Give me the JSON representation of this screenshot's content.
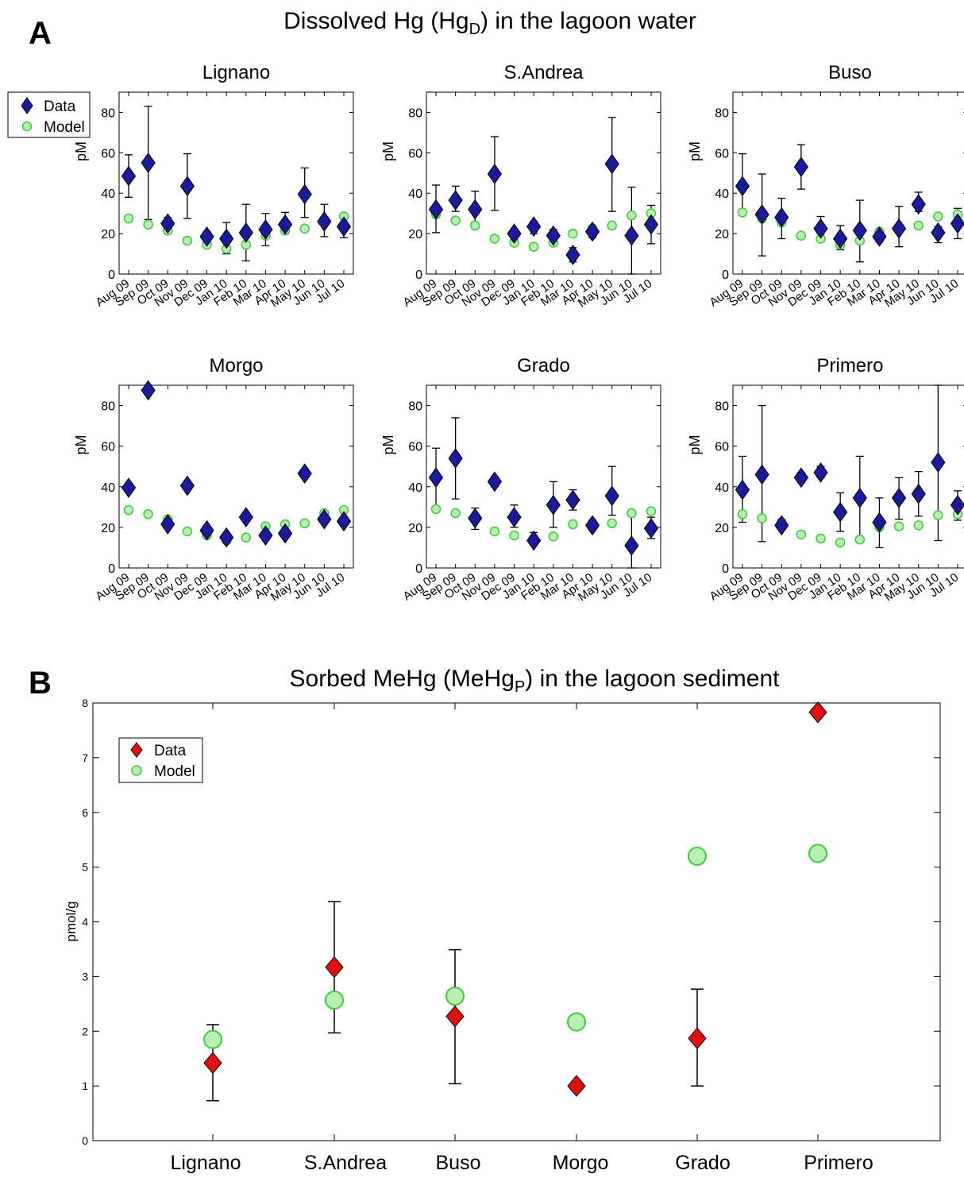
{
  "panel_a": {
    "letter": "A",
    "title_pre": "Dissolved Hg (Hg",
    "title_sub": "D",
    "title_post": ") in the lagoon water"
  },
  "panel_b": {
    "letter": "B",
    "title_pre": "Sorbed MeHg (MeHg",
    "title_sub": "P",
    "title_post": ") in the lagoon sediment"
  },
  "colors": {
    "data_a": "#1a1a9a",
    "data_b": "#e01010",
    "model_fill": "#b8f0b0",
    "model_edge": "#40c840"
  },
  "chart_data": [
    {
      "type": "scatter",
      "title": "Lignano",
      "ylabel": "pM",
      "ylim": [
        0,
        90
      ],
      "yticks": [
        0,
        20,
        40,
        60,
        80
      ],
      "categories": [
        "Aug 09",
        "Sep 09",
        "Oct 09",
        "Nov 09",
        "Dec 09",
        "Jan 10",
        "Feb 10",
        "Mar 10",
        "Apr 10",
        "May 10",
        "Jun 10",
        "Jul 10"
      ],
      "legend": {
        "position": "top-left",
        "entries": [
          "Data",
          "Model"
        ]
      },
      "series": [
        {
          "name": "Data",
          "values": [
            48.5,
            55,
            25,
            43.5,
            18.5,
            17.5,
            20.5,
            22,
            24.5,
            39.5,
            26,
            23.5
          ],
          "err_low": [
            38,
            27,
            22,
            27.5,
            15,
            10,
            6.5,
            14,
            20,
            28,
            18.5,
            18
          ],
          "err_high": [
            59,
            83,
            28,
            59.5,
            21,
            25.5,
            34.5,
            30,
            30.5,
            52.5,
            34.5,
            29
          ]
        },
        {
          "name": "Model",
          "values": [
            27.5,
            24.5,
            21.5,
            16.5,
            14.5,
            12.5,
            14.5,
            19,
            21.5,
            22.5,
            27,
            28.5
          ]
        }
      ]
    },
    {
      "type": "scatter",
      "title": "S.Andrea",
      "ylabel": "pM",
      "ylim": [
        0,
        90
      ],
      "yticks": [
        0,
        20,
        40,
        60,
        80
      ],
      "categories": [
        "Aug 09",
        "Sep 09",
        "Oct 09",
        "Nov 09",
        "Dec 09",
        "Jan 10",
        "Feb 10",
        "Mar 10",
        "Apr 10",
        "May 10",
        "Jun 10",
        "Jul 10"
      ],
      "series": [
        {
          "name": "Data",
          "values": [
            32,
            36.5,
            32,
            49.5,
            20,
            23.5,
            19,
            9.5,
            21,
            54.5,
            19,
            24.5
          ],
          "err_low": [
            20.5,
            31,
            25.5,
            31.5,
            17,
            20,
            16,
            6,
            18,
            31,
            0,
            15
          ],
          "err_high": [
            44,
            43.5,
            41,
            68,
            22,
            26,
            22,
            13,
            24,
            77.5,
            43,
            34
          ]
        },
        {
          "name": "Model",
          "values": [
            29.5,
            26.5,
            24,
            17.5,
            15.5,
            13.5,
            15.5,
            20,
            22.5,
            24,
            29,
            30
          ]
        }
      ]
    },
    {
      "type": "scatter",
      "title": "Buso",
      "ylabel": "pM",
      "ylim": [
        0,
        90
      ],
      "yticks": [
        0,
        20,
        40,
        60,
        80
      ],
      "categories": [
        "Aug 09",
        "Sep 09",
        "Oct 09",
        "Nov 09",
        "Dec 09",
        "Jan 10",
        "Feb 10",
        "Mar 10",
        "Apr 10",
        "May 10",
        "Jun 10",
        "Jul 10"
      ],
      "series": [
        {
          "name": "Data",
          "values": [
            43.5,
            29.5,
            28,
            53,
            22.5,
            17.5,
            21.5,
            18.5,
            22.5,
            34.5,
            20.5,
            25
          ],
          "err_low": [
            30,
            9,
            17.5,
            42,
            20,
            12,
            6,
            16,
            13.5,
            31,
            15.5,
            17.5
          ],
          "err_high": [
            59.5,
            49.5,
            37.5,
            64,
            28.5,
            24,
            36.5,
            21,
            33.5,
            40.5,
            23.5,
            32.5
          ]
        },
        {
          "name": "Model",
          "values": [
            30.5,
            27.5,
            25.5,
            19,
            17.5,
            14.5,
            16.5,
            21,
            23,
            24,
            28.5,
            29.5
          ]
        }
      ]
    },
    {
      "type": "scatter",
      "title": "Morgo",
      "ylabel": "pM",
      "ylim": [
        0,
        90
      ],
      "yticks": [
        0,
        20,
        40,
        60,
        80
      ],
      "categories": [
        "Aug 09",
        "Sep 09",
        "Oct 09",
        "Nov 09",
        "Dec 09",
        "Jan 10",
        "Feb 10",
        "Mar 10",
        "Apr 10",
        "May 10",
        "Jun 10",
        "Jul 10"
      ],
      "series": [
        {
          "name": "Data",
          "values": [
            39.5,
            87.5,
            21.5,
            40.5,
            18.5,
            15,
            25,
            16,
            17,
            46.5,
            24,
            23
          ]
        },
        {
          "name": "Model",
          "values": [
            28.5,
            26.5,
            24,
            18,
            16,
            13.5,
            15,
            20.5,
            21.5,
            22,
            27,
            28.5
          ]
        }
      ]
    },
    {
      "type": "scatter",
      "title": "Grado",
      "ylabel": "pM",
      "ylim": [
        0,
        90
      ],
      "yticks": [
        0,
        20,
        40,
        60,
        80
      ],
      "categories": [
        "Aug 09",
        "Sep 09",
        "Oct 09",
        "Nov 09",
        "Dec 09",
        "Jan 10",
        "Feb 10",
        "Mar 10",
        "Apr 10",
        "May 10",
        "Jun 10",
        "Jul 10"
      ],
      "series": [
        {
          "name": "Data",
          "values": [
            44.5,
            54,
            24.5,
            42.5,
            25,
            13.5,
            31,
            33.5,
            21,
            35.5,
            11,
            19.5
          ],
          "err_low": [
            30,
            34,
            19,
            40,
            20,
            12,
            20,
            28.5,
            18.5,
            26,
            0,
            14.5
          ],
          "err_high": [
            59,
            74,
            29.5,
            45,
            31,
            17.5,
            42.5,
            38.5,
            23.5,
            50,
            26.5,
            25
          ]
        },
        {
          "name": "Model",
          "values": [
            29,
            27,
            24,
            18,
            16,
            14,
            15.5,
            21.5,
            21,
            22,
            27,
            28
          ]
        }
      ]
    },
    {
      "type": "scatter",
      "title": "Primero",
      "ylabel": "pM",
      "ylim": [
        0,
        90
      ],
      "yticks": [
        0,
        20,
        40,
        60,
        80
      ],
      "categories": [
        "Aug 09",
        "Sep 09",
        "Oct 09",
        "Nov 09",
        "Dec 09",
        "Jan 10",
        "Feb 10",
        "Mar 10",
        "Apr 10",
        "May 10",
        "Jun 10",
        "Jul 10"
      ],
      "series": [
        {
          "name": "Data",
          "values": [
            38.5,
            46,
            21,
            44.5,
            47,
            27.5,
            34.5,
            22.5,
            34.5,
            36.5,
            52,
            31
          ],
          "err_low": [
            22.5,
            13,
            19.5,
            42,
            44.5,
            18,
            14.5,
            10,
            24,
            25.5,
            13.5,
            23.5
          ],
          "err_high": [
            55,
            80,
            24,
            47,
            50,
            37,
            55,
            34.5,
            44.5,
            47.5,
            90,
            38
          ]
        },
        {
          "name": "Model",
          "values": [
            26.5,
            24.5,
            22.5,
            16.5,
            14.5,
            12.5,
            14,
            20,
            20.5,
            21,
            26,
            26.5
          ]
        }
      ]
    },
    {
      "type": "scatter",
      "title": "",
      "ylabel": "pmol/g",
      "ylim": [
        0,
        8
      ],
      "yticks": [
        0,
        1,
        2,
        3,
        4,
        5,
        6,
        7,
        8
      ],
      "categories": [
        "Lignano",
        "S.Andrea",
        "Buso",
        "Morgo",
        "Grado",
        "Primero"
      ],
      "legend": {
        "position": "top-left",
        "entries": [
          "Data",
          "Model"
        ]
      },
      "series": [
        {
          "name": "Data",
          "values": [
            1.42,
            3.17,
            2.27,
            1.0,
            1.87,
            7.83
          ],
          "err_low": [
            0.73,
            1.97,
            1.04,
            null,
            1.0,
            null
          ],
          "err_high": [
            2.12,
            4.37,
            3.49,
            null,
            2.77,
            null
          ]
        },
        {
          "name": "Model",
          "values": [
            1.85,
            2.57,
            2.64,
            2.17,
            5.2,
            5.25
          ]
        }
      ]
    }
  ]
}
